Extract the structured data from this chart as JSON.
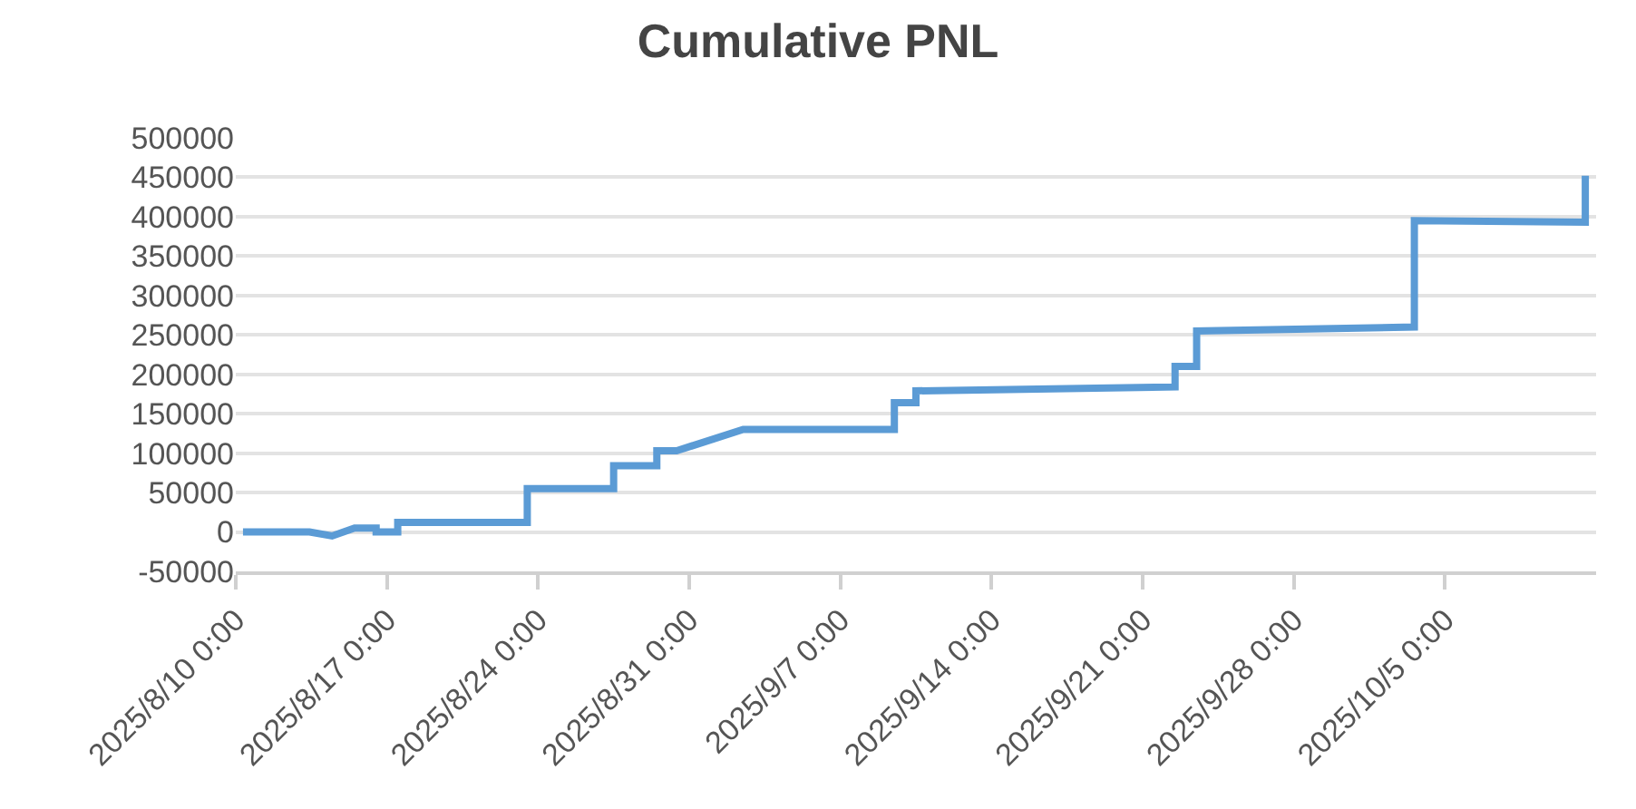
{
  "chart_data": {
    "type": "line",
    "title": "Cumulative PNL",
    "x": [
      "2025-08-10T08:00",
      "2025-08-13T10:00",
      "2025-08-14T11:00",
      "2025-08-15T12:00",
      "2025-08-16T12:00",
      "2025-08-16T12:00",
      "2025-08-17T12:00",
      "2025-08-17T12:00",
      "2025-08-23T12:00",
      "2025-08-23T12:00",
      "2025-08-27T12:00",
      "2025-08-27T12:00",
      "2025-08-29T12:00",
      "2025-08-29T12:00",
      "2025-08-30T10:00",
      "2025-09-02T12:00",
      "2025-09-09T12:00",
      "2025-09-09T12:00",
      "2025-09-10T12:00",
      "2025-09-10T12:00",
      "2025-09-22T12:00",
      "2025-09-22T12:00",
      "2025-09-23T12:00",
      "2025-09-23T12:00",
      "2025-10-03T14:00",
      "2025-10-03T14:00",
      "2025-10-11T12:00",
      "2025-10-11T12:00"
    ],
    "series": [
      {
        "color": "#5b9bd5",
        "values": [
          0,
          0,
          -5000,
          5000,
          5000,
          0,
          0,
          12000,
          12000,
          55000,
          55000,
          84000,
          84000,
          103000,
          103000,
          130000,
          130000,
          164000,
          164000,
          179000,
          184000,
          210000,
          210000,
          255000,
          260000,
          395000,
          393000,
          452000
        ]
      }
    ],
    "xlim": [
      "2025-08-10",
      "2025-10-12"
    ],
    "xticks": [
      {
        "value": "2025-08-10",
        "label": "2025/8/10 0:00"
      },
      {
        "value": "2025-08-17",
        "label": "2025/8/17 0:00"
      },
      {
        "value": "2025-08-24",
        "label": "2025/8/24 0:00"
      },
      {
        "value": "2025-08-31",
        "label": "2025/8/31 0:00"
      },
      {
        "value": "2025-09-07",
        "label": "2025/9/7 0:00"
      },
      {
        "value": "2025-09-14",
        "label": "2025/9/14 0:00"
      },
      {
        "value": "2025-09-21",
        "label": "2025/9/21 0:00"
      },
      {
        "value": "2025-09-28",
        "label": "2025/9/28 0:00"
      },
      {
        "value": "2025-10-05",
        "label": "2025/10/5 0:00"
      }
    ],
    "ylim": [
      -50000,
      500000
    ],
    "yticks": [
      -50000,
      0,
      50000,
      100000,
      150000,
      200000,
      250000,
      300000,
      350000,
      400000,
      450000,
      500000
    ],
    "grid": "y",
    "legend": false,
    "marker": "none",
    "line_style": "solid"
  }
}
